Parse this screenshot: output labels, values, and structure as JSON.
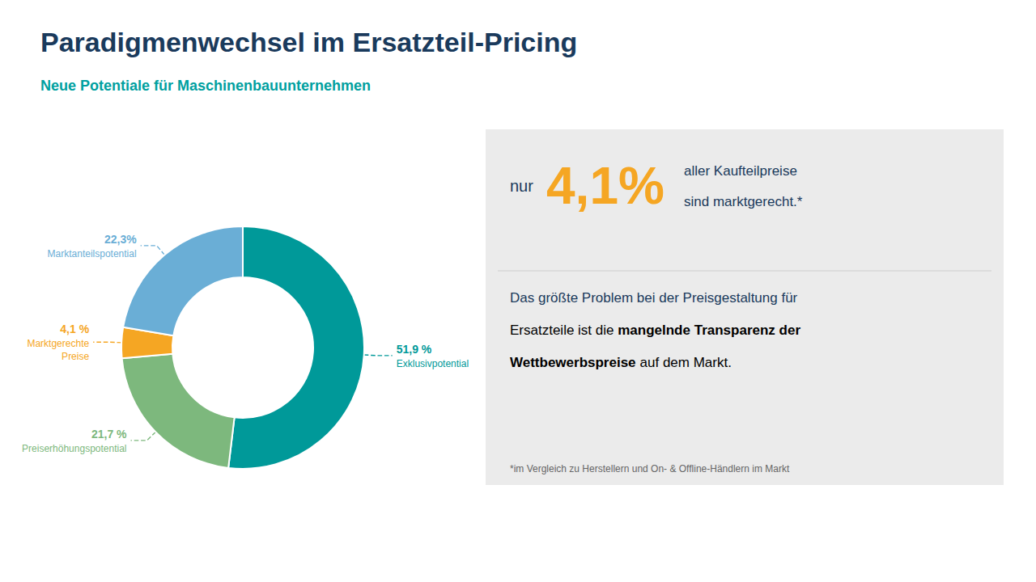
{
  "chart_data": {
    "type": "pie",
    "title": "Paradigmenwechsel im Ersatzteil-Pricing",
    "subtitle": "Neue Potentiale für Maschinenbauunternehmen",
    "categories": [
      "Exklusivpotential",
      "Preiserhöhungspotential",
      "Marktgerechte\nPreise",
      "Marktanteilspotential"
    ],
    "values": [
      51.9,
      21.7,
      4.1,
      22.3
    ],
    "value_labels": [
      "51,9 %",
      "21,7 %",
      "4,1 %",
      "22,3%"
    ],
    "colors": [
      "#009999",
      "#7db87d",
      "#f5a623",
      "#6aaed6"
    ],
    "annotations": [
      "nur",
      "4,1%",
      "aller Kaufteilpreise",
      "sind marktgerecht.*",
      "Das größte Problem bei der Preisgestaltung für",
      "Ersatzteile ist die ",
      "mangelnde Transparenz der",
      "Wettbewerbspreise",
      "auf dem Markt.",
      "*im Vergleich zu Herstellern und On- & Offline-Händlern im Markt"
    ]
  }
}
